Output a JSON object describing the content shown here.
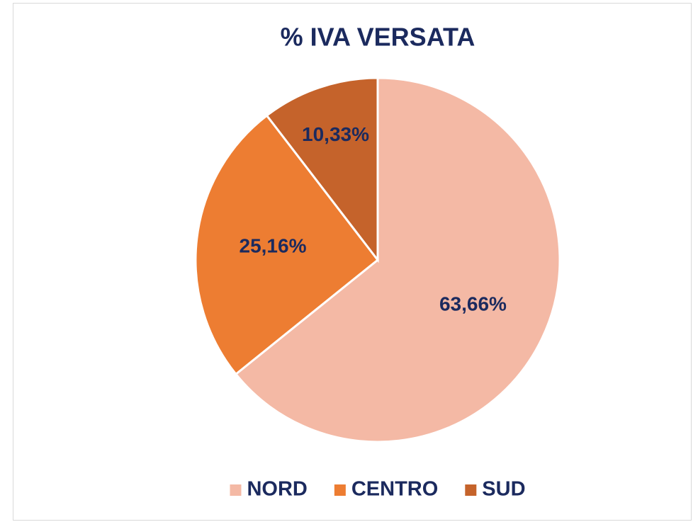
{
  "chart_data": {
    "type": "pie",
    "title": "% IVA VERSATA",
    "categories": [
      "NORD",
      "CENTRO",
      "SUD"
    ],
    "values": [
      63.66,
      25.16,
      10.33
    ],
    "value_labels": [
      "63,66%",
      "25,16%",
      "10,33%"
    ],
    "colors": [
      "#f4b9a5",
      "#ed7d32",
      "#c5632b"
    ],
    "legend": "bottom"
  }
}
